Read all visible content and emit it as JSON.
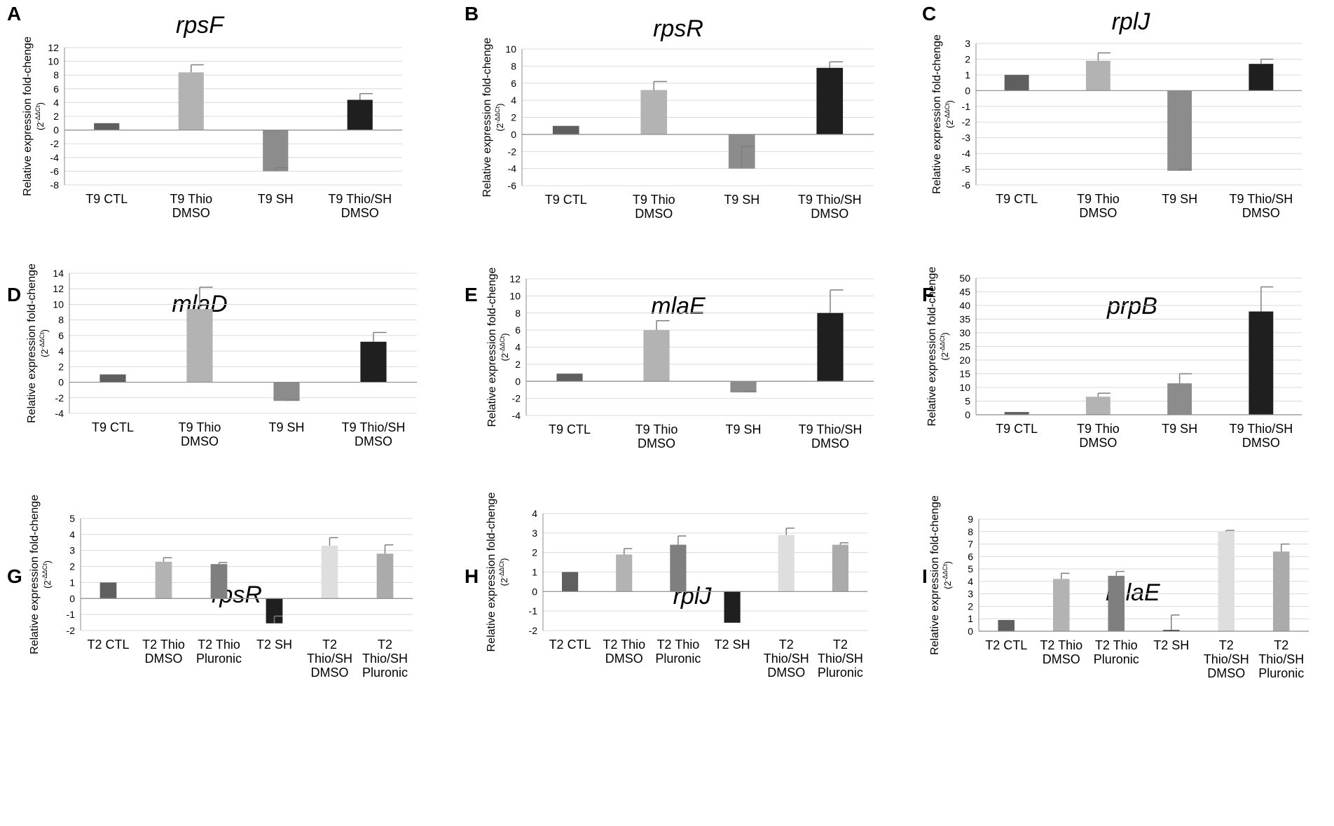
{
  "colors": {
    "ctl": "#5f5f5f",
    "thio_dmso": "#b3b3b3",
    "thio_pluronic": "#7f7f7f",
    "sh9": "#8c8c8c",
    "sh2": "#1f1f1f",
    "combo": "#1f1f1f",
    "combo_dmso2": "#dedede",
    "combo_pluronic2": "#ababab",
    "grid": "#d9d9d9",
    "axis": "#8c8c8c",
    "error": "#7f7f7f"
  },
  "y_axis_label": {
    "main": "Relative expression fold-chenge",
    "sub_open": "(2",
    "sub_sup": "-ΔΔCt",
    "sub_close": ")"
  },
  "chart_data": [
    {
      "panel": "A",
      "title": "rpsF",
      "type": "bar",
      "categories": [
        [
          "T9 CTL"
        ],
        [
          "T9 Thio",
          "DMSO"
        ],
        [
          "T9 SH"
        ],
        [
          "T9 Thio/SH",
          "DMSO"
        ]
      ],
      "values": [
        1,
        8.4,
        -6,
        4.4
      ],
      "errors": [
        0,
        1.1,
        0.5,
        0.9
      ],
      "ylim": [
        -8,
        12
      ],
      "yticks": [
        -8,
        -6,
        -4,
        -2,
        0,
        2,
        4,
        6,
        8,
        10,
        12
      ],
      "bar_colors": [
        "ctl",
        "thio_dmso",
        "sh9",
        "combo"
      ]
    },
    {
      "panel": "B",
      "title": "rpsR",
      "type": "bar",
      "categories": [
        [
          "T9 CTL"
        ],
        [
          "T9 Thio",
          "DMSO"
        ],
        [
          "T9 SH"
        ],
        [
          "T9 Thio/SH",
          "DMSO"
        ]
      ],
      "values": [
        1,
        5.2,
        -4,
        7.8
      ],
      "errors": [
        0,
        1,
        2.6,
        0.7
      ],
      "ylim": [
        -6,
        10
      ],
      "yticks": [
        -6,
        -4,
        -2,
        0,
        2,
        4,
        6,
        8,
        10
      ],
      "bar_colors": [
        "ctl",
        "thio_dmso",
        "sh9",
        "combo"
      ]
    },
    {
      "panel": "C",
      "title": "rplJ",
      "type": "bar",
      "categories": [
        [
          "T9 CTL"
        ],
        [
          "T9 Thio",
          "DMSO"
        ],
        [
          "T9 SH"
        ],
        [
          "T9 Thio/SH",
          "DMSO"
        ]
      ],
      "values": [
        1,
        1.9,
        -5.1,
        1.7
      ],
      "errors": [
        0,
        0.5,
        0.1,
        0.3
      ],
      "ylim": [
        -6,
        3
      ],
      "yticks": [
        -6,
        -5,
        -4,
        -3,
        -2,
        -1,
        0,
        1,
        2,
        3
      ],
      "bar_colors": [
        "ctl",
        "thio_dmso",
        "sh9",
        "combo"
      ]
    },
    {
      "panel": "D",
      "title": "mlaD",
      "type": "bar",
      "categories": [
        [
          "T9 CTL"
        ],
        [
          "T9 Thio",
          "DMSO"
        ],
        [
          "T9 SH"
        ],
        [
          "T9 Thio/SH",
          "DMSO"
        ]
      ],
      "values": [
        1,
        9.4,
        -2.4,
        5.2
      ],
      "errors": [
        0,
        2.8,
        0.1,
        1.2
      ],
      "ylim": [
        -4,
        14
      ],
      "yticks": [
        -4,
        -2,
        0,
        2,
        4,
        6,
        8,
        10,
        12,
        14
      ],
      "bar_colors": [
        "ctl",
        "thio_dmso",
        "sh9",
        "combo"
      ]
    },
    {
      "panel": "E",
      "title": "mlaE",
      "type": "bar",
      "categories": [
        [
          "T9 CTL"
        ],
        [
          "T9 Thio",
          "DMSO"
        ],
        [
          "T9 SH"
        ],
        [
          "T9 Thio/SH",
          "DMSO"
        ]
      ],
      "values": [
        0.9,
        6,
        -1.3,
        8
      ],
      "errors": [
        0,
        1.1,
        0.1,
        2.7
      ],
      "ylim": [
        -4,
        12
      ],
      "yticks": [
        -4,
        -2,
        0,
        2,
        4,
        6,
        8,
        10,
        12
      ],
      "bar_colors": [
        "ctl",
        "thio_dmso",
        "sh9",
        "combo"
      ]
    },
    {
      "panel": "F",
      "title": "prpB",
      "type": "bar",
      "categories": [
        [
          "T9 CTL"
        ],
        [
          "T9 Thio",
          "DMSO"
        ],
        [
          "T9 SH"
        ],
        [
          "T9 Thio/SH",
          "DMSO"
        ]
      ],
      "values": [
        1,
        6.6,
        11.5,
        37.8
      ],
      "errors": [
        0,
        1.3,
        3.5,
        9
      ],
      "ylim": [
        0,
        50
      ],
      "yticks": [
        0,
        5,
        10,
        15,
        20,
        25,
        30,
        35,
        40,
        45,
        50
      ],
      "bar_colors": [
        "ctl",
        "thio_dmso",
        "sh9",
        "combo"
      ]
    },
    {
      "panel": "G",
      "title": "rpsR",
      "type": "bar",
      "categories": [
        [
          "T2 CTL"
        ],
        [
          "T2 Thio",
          "DMSO"
        ],
        [
          "T2 Thio",
          "Pluronic"
        ],
        [
          "T2 SH"
        ],
        [
          "T2",
          "Thio/SH",
          "DMSO"
        ],
        [
          "T2",
          "Thio/SH",
          "Pluronic"
        ]
      ],
      "values": [
        1,
        2.3,
        2.15,
        -1.55,
        3.3,
        2.8
      ],
      "errors": [
        0,
        0.25,
        0.1,
        0.45,
        0.5,
        0.55
      ],
      "ylim": [
        -2,
        5
      ],
      "yticks": [
        -2,
        -1,
        0,
        1,
        2,
        3,
        4,
        5
      ],
      "bar_colors": [
        "ctl",
        "thio_dmso",
        "thio_pluronic",
        "sh2",
        "combo_dmso2",
        "combo_pluronic2"
      ]
    },
    {
      "panel": "H",
      "title": "rplJ",
      "type": "bar",
      "categories": [
        [
          "T2 CTL"
        ],
        [
          "T2 Thio",
          "DMSO"
        ],
        [
          "T2 Thio",
          "Pluronic"
        ],
        [
          "T2 SH"
        ],
        [
          "T2",
          "Thio/SH",
          "DMSO"
        ],
        [
          "T2",
          "Thio/SH",
          "Pluronic"
        ]
      ],
      "values": [
        1,
        1.9,
        2.4,
        -1.6,
        2.9,
        2.4
      ],
      "errors": [
        0,
        0.3,
        0.45,
        0,
        0.35,
        0.1
      ],
      "ylim": [
        -2,
        4
      ],
      "yticks": [
        -2,
        -1,
        0,
        1,
        2,
        3,
        4
      ],
      "bar_colors": [
        "ctl",
        "thio_dmso",
        "thio_pluronic",
        "sh2",
        "combo_dmso2",
        "combo_pluronic2"
      ]
    },
    {
      "panel": "I",
      "title": "mlaE",
      "type": "bar",
      "categories": [
        [
          "T2 CTL"
        ],
        [
          "T2 Thio",
          "DMSO"
        ],
        [
          "T2 Thio",
          "Pluronic"
        ],
        [
          "T2 SH"
        ],
        [
          "T2",
          "Thio/SH",
          "DMSO"
        ],
        [
          "T2",
          "Thio/SH",
          "Pluronic"
        ]
      ],
      "values": [
        0.9,
        4.2,
        4.45,
        0.1,
        8,
        6.4
      ],
      "errors": [
        0,
        0.45,
        0.35,
        1.2,
        0.1,
        0.6
      ],
      "ylim": [
        0,
        9
      ],
      "yticks": [
        0,
        1,
        2,
        3,
        4,
        5,
        6,
        7,
        8,
        9
      ],
      "bar_colors": [
        "ctl",
        "thio_dmso",
        "thio_pluronic",
        "sh2",
        "combo_dmso2",
        "combo_pluronic2"
      ]
    }
  ]
}
